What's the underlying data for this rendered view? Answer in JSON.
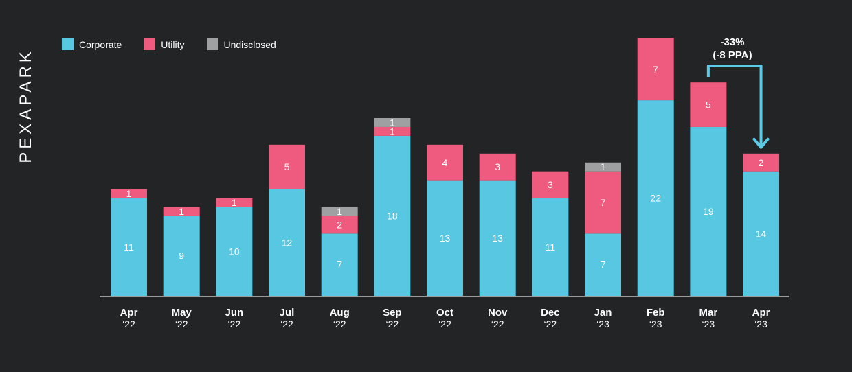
{
  "brand": {
    "logo_text": "PEXAPARK"
  },
  "colors": {
    "background": "#232425",
    "corporate": "#58c8e2",
    "utility": "#ef5b7e",
    "undisclosed": "#9ea0a2",
    "axis": "#9a9a9a",
    "annotation": "#5ccbe6"
  },
  "legend": [
    {
      "label": "Corporate",
      "key": "corporate"
    },
    {
      "label": "Utility",
      "key": "utility"
    },
    {
      "label": "Undisclosed",
      "key": "undisclosed"
    }
  ],
  "annotation": {
    "line1": "-33%",
    "line2": "(-8 PPA)",
    "from_category_index": 11,
    "to_category_index": 12
  },
  "chart_data": {
    "type": "bar",
    "stacked": true,
    "title": "",
    "xlabel": "",
    "ylabel": "",
    "grid": false,
    "legend_position": "top-left",
    "ylim": [
      0,
      29
    ],
    "categories": [
      {
        "month": "Apr",
        "year": "‘22"
      },
      {
        "month": "May",
        "year": "‘22"
      },
      {
        "month": "Jun",
        "year": "‘22"
      },
      {
        "month": "Jul",
        "year": "‘22"
      },
      {
        "month": "Aug",
        "year": "‘22"
      },
      {
        "month": "Sep",
        "year": "‘22"
      },
      {
        "month": "Oct",
        "year": "‘22"
      },
      {
        "month": "Nov",
        "year": "‘22"
      },
      {
        "month": "Dec",
        "year": "‘22"
      },
      {
        "month": "Jan",
        "year": "‘23"
      },
      {
        "month": "Feb",
        "year": "‘23"
      },
      {
        "month": "Mar",
        "year": "‘23"
      },
      {
        "month": "Apr",
        "year": "‘23"
      }
    ],
    "series": [
      {
        "name": "Corporate",
        "key": "corporate",
        "values": [
          11,
          9,
          10,
          12,
          7,
          18,
          13,
          13,
          11,
          7,
          22,
          19,
          14
        ]
      },
      {
        "name": "Utility",
        "key": "utility",
        "values": [
          1,
          1,
          1,
          5,
          2,
          1,
          4,
          3,
          3,
          7,
          7,
          5,
          2
        ]
      },
      {
        "name": "Undisclosed",
        "key": "undisclosed",
        "values": [
          0,
          0,
          0,
          0,
          1,
          1,
          0,
          0,
          0,
          1,
          0,
          0,
          0
        ]
      }
    ]
  }
}
